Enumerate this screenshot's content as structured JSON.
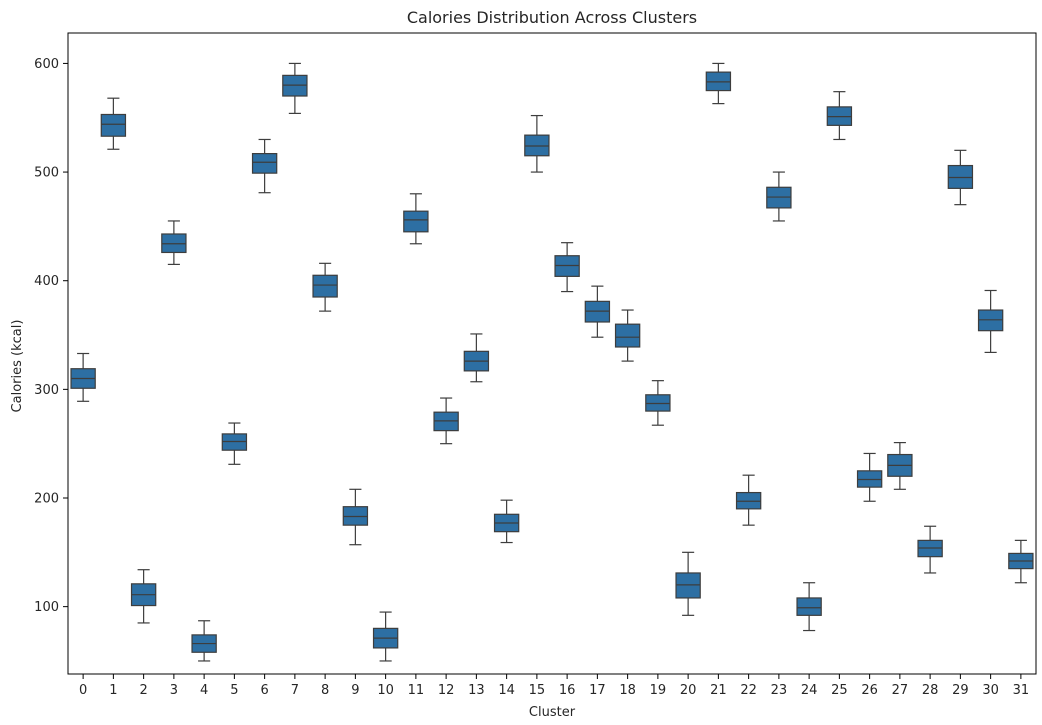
{
  "chart_data": {
    "type": "boxplot",
    "title": "Calories Distribution Across Clusters",
    "xlabel": "Cluster",
    "ylabel": "Calories (kcal)",
    "ylim": [
      38,
      628
    ],
    "yticks": [
      100,
      200,
      300,
      400,
      500,
      600
    ],
    "grid": false,
    "legend": "none",
    "box_color": "#2d6fa3",
    "line_color": "#3d3d3d",
    "categories": [
      "0",
      "1",
      "2",
      "3",
      "4",
      "5",
      "6",
      "7",
      "8",
      "9",
      "10",
      "11",
      "12",
      "13",
      "14",
      "15",
      "16",
      "17",
      "18",
      "19",
      "20",
      "21",
      "22",
      "23",
      "24",
      "25",
      "26",
      "27",
      "28",
      "29",
      "30",
      "31"
    ],
    "boxes": [
      {
        "cluster": "0",
        "whislo": 289,
        "q1": 301,
        "med": 310,
        "q3": 319,
        "whishi": 333
      },
      {
        "cluster": "1",
        "whislo": 521,
        "q1": 533,
        "med": 544,
        "q3": 553,
        "whishi": 568
      },
      {
        "cluster": "2",
        "whislo": 85,
        "q1": 101,
        "med": 111,
        "q3": 121,
        "whishi": 134
      },
      {
        "cluster": "3",
        "whislo": 415,
        "q1": 426,
        "med": 434,
        "q3": 443,
        "whishi": 455
      },
      {
        "cluster": "4",
        "whislo": 50,
        "q1": 58,
        "med": 66,
        "q3": 74,
        "whishi": 87
      },
      {
        "cluster": "5",
        "whislo": 231,
        "q1": 244,
        "med": 252,
        "q3": 259,
        "whishi": 269
      },
      {
        "cluster": "6",
        "whislo": 481,
        "q1": 499,
        "med": 509,
        "q3": 517,
        "whishi": 530
      },
      {
        "cluster": "7",
        "whislo": 554,
        "q1": 570,
        "med": 580,
        "q3": 589,
        "whishi": 600
      },
      {
        "cluster": "8",
        "whislo": 372,
        "q1": 385,
        "med": 396,
        "q3": 405,
        "whishi": 416
      },
      {
        "cluster": "9",
        "whislo": 157,
        "q1": 175,
        "med": 183,
        "q3": 192,
        "whishi": 208
      },
      {
        "cluster": "10",
        "whislo": 50,
        "q1": 62,
        "med": 71,
        "q3": 80,
        "whishi": 95
      },
      {
        "cluster": "11",
        "whislo": 434,
        "q1": 445,
        "med": 456,
        "q3": 464,
        "whishi": 480
      },
      {
        "cluster": "12",
        "whislo": 250,
        "q1": 262,
        "med": 271,
        "q3": 279,
        "whishi": 292
      },
      {
        "cluster": "13",
        "whislo": 307,
        "q1": 317,
        "med": 326,
        "q3": 335,
        "whishi": 351
      },
      {
        "cluster": "14",
        "whislo": 159,
        "q1": 169,
        "med": 177,
        "q3": 185,
        "whishi": 198
      },
      {
        "cluster": "15",
        "whislo": 500,
        "q1": 515,
        "med": 524,
        "q3": 534,
        "whishi": 552
      },
      {
        "cluster": "16",
        "whislo": 390,
        "q1": 404,
        "med": 414,
        "q3": 423,
        "whishi": 435
      },
      {
        "cluster": "17",
        "whislo": 348,
        "q1": 362,
        "med": 372,
        "q3": 381,
        "whishi": 395
      },
      {
        "cluster": "18",
        "whislo": 326,
        "q1": 339,
        "med": 348,
        "q3": 360,
        "whishi": 373
      },
      {
        "cluster": "19",
        "whislo": 267,
        "q1": 280,
        "med": 287,
        "q3": 295,
        "whishi": 308
      },
      {
        "cluster": "20",
        "whislo": 92,
        "q1": 108,
        "med": 120,
        "q3": 131,
        "whishi": 150
      },
      {
        "cluster": "21",
        "whislo": 563,
        "q1": 575,
        "med": 583,
        "q3": 592,
        "whishi": 600
      },
      {
        "cluster": "22",
        "whislo": 175,
        "q1": 190,
        "med": 197,
        "q3": 205,
        "whishi": 221
      },
      {
        "cluster": "23",
        "whislo": 455,
        "q1": 467,
        "med": 477,
        "q3": 486,
        "whishi": 500
      },
      {
        "cluster": "24",
        "whislo": 78,
        "q1": 92,
        "med": 99,
        "q3": 108,
        "whishi": 122
      },
      {
        "cluster": "25",
        "whislo": 530,
        "q1": 543,
        "med": 551,
        "q3": 560,
        "whishi": 574
      },
      {
        "cluster": "26",
        "whislo": 197,
        "q1": 210,
        "med": 217,
        "q3": 225,
        "whishi": 241
      },
      {
        "cluster": "27",
        "whislo": 208,
        "q1": 220,
        "med": 230,
        "q3": 240,
        "whishi": 251
      },
      {
        "cluster": "28",
        "whislo": 131,
        "q1": 146,
        "med": 154,
        "q3": 161,
        "whishi": 174
      },
      {
        "cluster": "29",
        "whislo": 470,
        "q1": 485,
        "med": 495,
        "q3": 506,
        "whishi": 520
      },
      {
        "cluster": "30",
        "whislo": 334,
        "q1": 354,
        "med": 364,
        "q3": 373,
        "whishi": 391
      },
      {
        "cluster": "31",
        "whislo": 122,
        "q1": 135,
        "med": 142,
        "q3": 149,
        "whishi": 161
      }
    ]
  }
}
